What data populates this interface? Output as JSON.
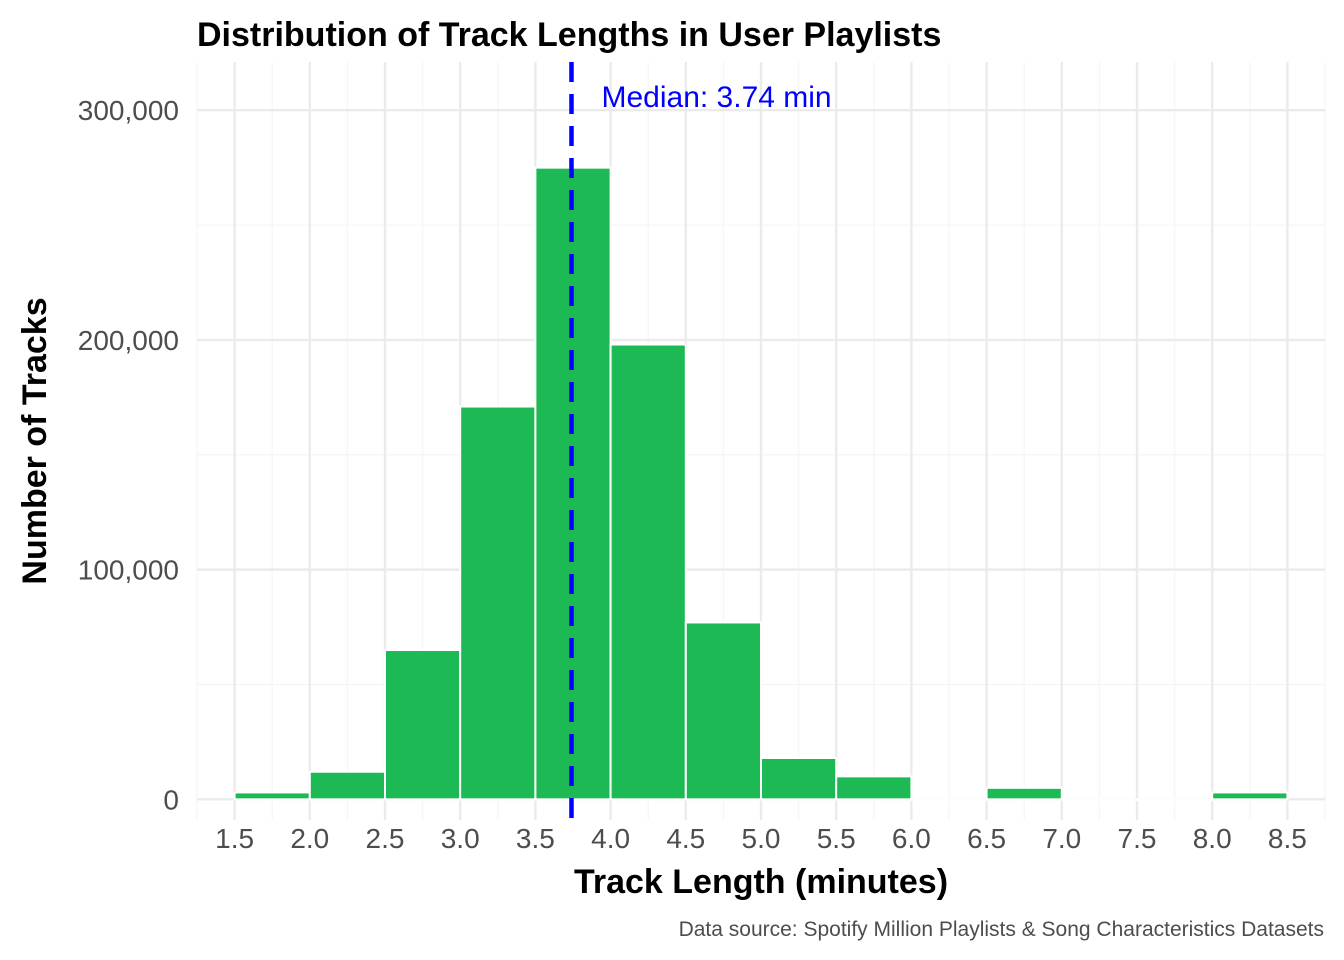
{
  "chart_data": {
    "type": "bar",
    "title": "Distribution of Track Lengths in User Playlists",
    "xlabel": "Track Length (minutes)",
    "ylabel": "Number of Tracks",
    "caption": "Data source: Spotify Million Playlists & Song Characteristics Datasets",
    "xlim": [
      1.25,
      8.75
    ],
    "ylim": [
      -9000,
      321000
    ],
    "x_ticks": [
      1.5,
      2.0,
      2.5,
      3.0,
      3.5,
      4.0,
      4.5,
      5.0,
      5.5,
      6.0,
      6.5,
      7.0,
      7.5,
      8.0,
      8.5
    ],
    "x_tick_labels": [
      "1.5",
      "2.0",
      "2.5",
      "3.0",
      "3.5",
      "4.0",
      "4.5",
      "5.0",
      "5.5",
      "6.0",
      "6.5",
      "7.0",
      "7.5",
      "8.0",
      "8.5"
    ],
    "y_ticks": [
      0,
      100000,
      200000,
      300000
    ],
    "y_tick_labels": [
      "0",
      "100,000",
      "200,000",
      "300,000"
    ],
    "bin_width": 0.5,
    "bins": [
      {
        "start": 1.5,
        "end": 2.0,
        "count": 3000
      },
      {
        "start": 2.0,
        "end": 2.5,
        "count": 12000
      },
      {
        "start": 2.5,
        "end": 3.0,
        "count": 65000
      },
      {
        "start": 3.0,
        "end": 3.5,
        "count": 171000
      },
      {
        "start": 3.5,
        "end": 4.0,
        "count": 275000
      },
      {
        "start": 4.0,
        "end": 4.5,
        "count": 198000
      },
      {
        "start": 4.5,
        "end": 5.0,
        "count": 77000
      },
      {
        "start": 5.0,
        "end": 5.5,
        "count": 18000
      },
      {
        "start": 5.5,
        "end": 6.0,
        "count": 10000
      },
      {
        "start": 6.0,
        "end": 6.5,
        "count": 0
      },
      {
        "start": 6.5,
        "end": 7.0,
        "count": 5000
      },
      {
        "start": 7.0,
        "end": 7.5,
        "count": 0
      },
      {
        "start": 7.5,
        "end": 8.0,
        "count": 0
      },
      {
        "start": 8.0,
        "end": 8.5,
        "count": 3000
      }
    ],
    "median": 3.74,
    "median_label": "Median: 3.74 min",
    "colors": {
      "bar_fill": "#1DB954",
      "bar_stroke": "#ffffff",
      "median_line": "#0000FF",
      "grid_major": "#EBEBEB",
      "grid_minor": "#F5F5F5"
    },
    "grid": true,
    "legend": "none"
  }
}
